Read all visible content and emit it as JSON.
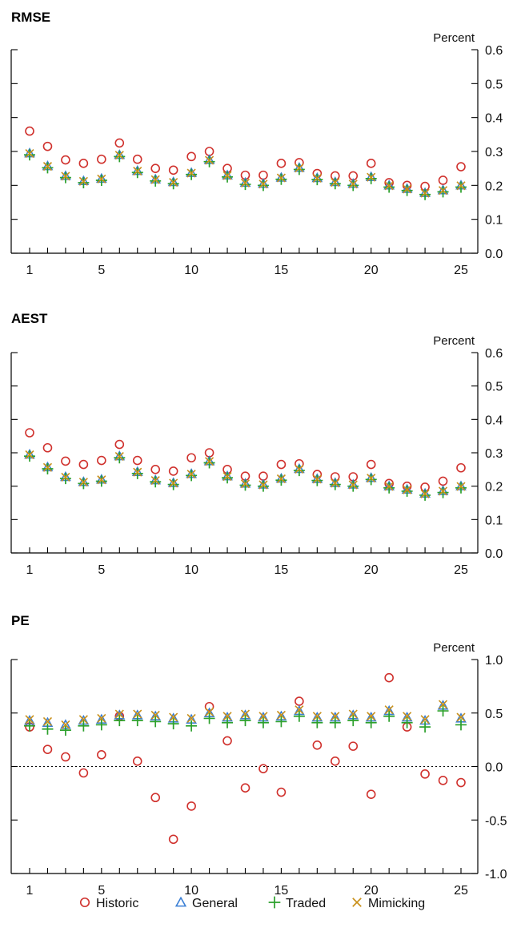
{
  "colors": {
    "historic": "#d0312d",
    "general": "#3a7fd5",
    "traded": "#2ca02c",
    "mimicking": "#c9901a"
  },
  "legend": [
    "Historic",
    "General",
    "Traded",
    "Mimicking"
  ],
  "chart_data": [
    {
      "type": "scatter",
      "title": "RMSE",
      "unit": "Percent",
      "x": [
        1,
        2,
        3,
        4,
        5,
        6,
        7,
        8,
        9,
        10,
        11,
        12,
        13,
        14,
        15,
        16,
        17,
        18,
        19,
        20,
        21,
        22,
        23,
        24,
        25
      ],
      "xticks": [
        1,
        5,
        10,
        15,
        20,
        25
      ],
      "ylim": [
        0.0,
        0.6
      ],
      "yticks": [
        "0.0",
        "0.1",
        "0.2",
        "0.3",
        "0.4",
        "0.5",
        "0.6"
      ],
      "zero_line": false,
      "series": [
        {
          "name": "Historic",
          "values": [
            0.36,
            0.315,
            0.275,
            0.265,
            0.277,
            0.325,
            0.277,
            0.25,
            0.245,
            0.285,
            0.3,
            0.25,
            0.23,
            0.23,
            0.265,
            0.267,
            0.235,
            0.228,
            0.228,
            0.265,
            0.208,
            0.2,
            0.197,
            0.215,
            0.255
          ]
        },
        {
          "name": "General",
          "values": [
            0.295,
            0.257,
            0.228,
            0.213,
            0.22,
            0.29,
            0.243,
            0.218,
            0.21,
            0.237,
            0.275,
            0.23,
            0.208,
            0.205,
            0.223,
            0.252,
            0.222,
            0.21,
            0.205,
            0.225,
            0.2,
            0.19,
            0.178,
            0.186,
            0.2
          ]
        },
        {
          "name": "Traded",
          "values": [
            0.29,
            0.252,
            0.223,
            0.208,
            0.215,
            0.285,
            0.238,
            0.213,
            0.205,
            0.232,
            0.27,
            0.225,
            0.203,
            0.2,
            0.218,
            0.247,
            0.217,
            0.205,
            0.2,
            0.22,
            0.195,
            0.185,
            0.173,
            0.181,
            0.195
          ]
        },
        {
          "name": "Mimicking",
          "values": [
            0.294,
            0.256,
            0.227,
            0.212,
            0.219,
            0.289,
            0.242,
            0.217,
            0.209,
            0.236,
            0.274,
            0.229,
            0.207,
            0.204,
            0.222,
            0.251,
            0.221,
            0.209,
            0.204,
            0.224,
            0.199,
            0.189,
            0.177,
            0.185,
            0.199
          ]
        }
      ]
    },
    {
      "type": "scatter",
      "title": "AEST",
      "unit": "Percent",
      "x": [
        1,
        2,
        3,
        4,
        5,
        6,
        7,
        8,
        9,
        10,
        11,
        12,
        13,
        14,
        15,
        16,
        17,
        18,
        19,
        20,
        21,
        22,
        23,
        24,
        25
      ],
      "xticks": [
        1,
        5,
        10,
        15,
        20,
        25
      ],
      "ylim": [
        0.0,
        0.6
      ],
      "yticks": [
        "0.0",
        "0.1",
        "0.2",
        "0.3",
        "0.4",
        "0.5",
        "0.6"
      ],
      "zero_line": false,
      "series": [
        {
          "name": "Historic",
          "values": [
            0.36,
            0.315,
            0.275,
            0.265,
            0.277,
            0.325,
            0.277,
            0.25,
            0.245,
            0.285,
            0.3,
            0.25,
            0.23,
            0.23,
            0.265,
            0.267,
            0.235,
            0.228,
            0.228,
            0.265,
            0.208,
            0.2,
            0.197,
            0.215,
            0.255
          ]
        },
        {
          "name": "General",
          "values": [
            0.295,
            0.257,
            0.228,
            0.213,
            0.22,
            0.29,
            0.243,
            0.218,
            0.21,
            0.237,
            0.275,
            0.23,
            0.208,
            0.205,
            0.223,
            0.252,
            0.222,
            0.21,
            0.205,
            0.225,
            0.2,
            0.19,
            0.178,
            0.186,
            0.2
          ]
        },
        {
          "name": "Traded",
          "values": [
            0.29,
            0.252,
            0.223,
            0.208,
            0.215,
            0.285,
            0.238,
            0.213,
            0.205,
            0.232,
            0.27,
            0.225,
            0.203,
            0.2,
            0.218,
            0.247,
            0.217,
            0.205,
            0.2,
            0.22,
            0.195,
            0.185,
            0.173,
            0.181,
            0.195
          ]
        },
        {
          "name": "Mimicking",
          "values": [
            0.294,
            0.256,
            0.227,
            0.212,
            0.219,
            0.289,
            0.242,
            0.217,
            0.209,
            0.236,
            0.274,
            0.229,
            0.207,
            0.204,
            0.222,
            0.251,
            0.221,
            0.209,
            0.204,
            0.224,
            0.199,
            0.189,
            0.177,
            0.185,
            0.199
          ]
        }
      ]
    },
    {
      "type": "scatter",
      "title": "PE",
      "unit": "Percent",
      "x": [
        1,
        2,
        3,
        4,
        5,
        6,
        7,
        8,
        9,
        10,
        11,
        12,
        13,
        14,
        15,
        16,
        17,
        18,
        19,
        20,
        21,
        22,
        23,
        24,
        25
      ],
      "xticks": [
        1,
        5,
        10,
        15,
        20,
        25
      ],
      "ylim": [
        -1.0,
        1.0
      ],
      "yticks": [
        "-1.0",
        "-0.5",
        "0.0",
        "0.5",
        "1.0"
      ],
      "zero_line": true,
      "series": [
        {
          "name": "Historic",
          "values": [
            0.37,
            0.16,
            0.09,
            -0.06,
            0.11,
            0.47,
            0.05,
            -0.29,
            -0.68,
            -0.37,
            0.56,
            0.24,
            -0.2,
            -0.02,
            -0.24,
            0.61,
            0.2,
            0.05,
            0.19,
            -0.26,
            0.83,
            0.37,
            -0.07,
            -0.13,
            -0.15
          ]
        },
        {
          "name": "General",
          "values": [
            0.43,
            0.41,
            0.39,
            0.43,
            0.44,
            0.48,
            0.48,
            0.47,
            0.45,
            0.44,
            0.5,
            0.46,
            0.48,
            0.46,
            0.47,
            0.52,
            0.46,
            0.46,
            0.48,
            0.46,
            0.52,
            0.46,
            0.43,
            0.57,
            0.45
          ]
        },
        {
          "name": "Traded",
          "values": [
            0.38,
            0.35,
            0.34,
            0.38,
            0.39,
            0.43,
            0.43,
            0.42,
            0.4,
            0.38,
            0.45,
            0.41,
            0.43,
            0.41,
            0.42,
            0.47,
            0.41,
            0.41,
            0.43,
            0.41,
            0.47,
            0.41,
            0.37,
            0.52,
            0.39
          ]
        },
        {
          "name": "Mimicking",
          "values": [
            0.44,
            0.42,
            0.39,
            0.44,
            0.45,
            0.49,
            0.49,
            0.48,
            0.46,
            0.45,
            0.51,
            0.47,
            0.49,
            0.47,
            0.48,
            0.53,
            0.47,
            0.47,
            0.49,
            0.47,
            0.53,
            0.47,
            0.44,
            0.58,
            0.46
          ]
        }
      ]
    }
  ]
}
